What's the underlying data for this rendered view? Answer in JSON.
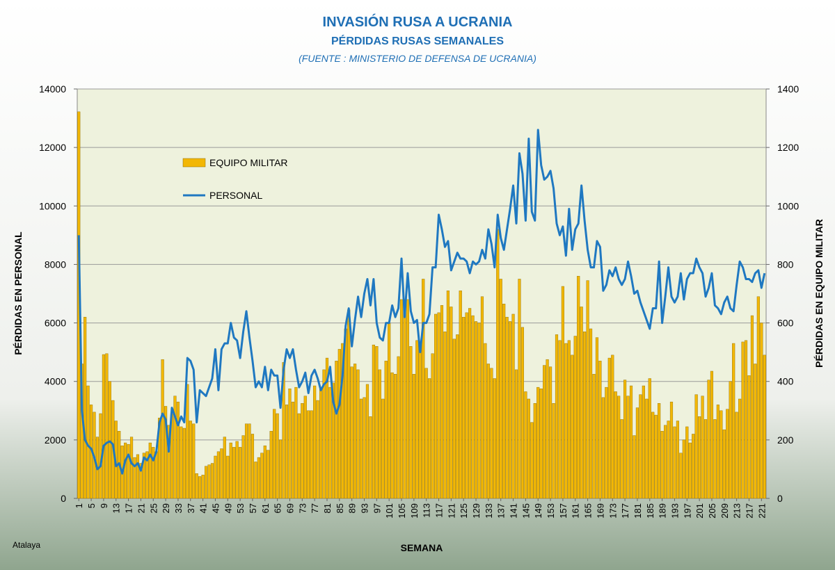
{
  "chart_data": {
    "type": "bar",
    "title": "INVASIÓN RUSA A UCRANIA",
    "subtitle": "PÉRDIDAS RUSAS SEMANALES",
    "source": "(FUENTE : MINISTERIO DE DEFENSA DE UCRANIA)",
    "credit": "Atalaya",
    "xlabel": "SEMANA",
    "ylabel": "PÉRDIDAS EN PERSONAL",
    "y2label": "PÉRDIDAS EN EQUIPO MILITAR",
    "ylim": [
      0,
      14000
    ],
    "yticks": [
      0,
      2000,
      4000,
      6000,
      8000,
      10000,
      12000,
      14000
    ],
    "y2lim": [
      0,
      1400
    ],
    "y2ticks": [
      0,
      200,
      400,
      600,
      800,
      1000,
      1200,
      1400
    ],
    "grid": true,
    "categories": [
      1,
      null,
      null,
      null,
      5,
      null,
      null,
      null,
      9,
      null,
      null,
      null,
      13,
      null,
      null,
      null,
      17,
      null,
      null,
      null,
      21,
      null,
      null,
      null,
      25,
      null,
      null,
      null,
      29,
      null,
      null,
      null,
      33,
      null,
      null,
      null,
      37,
      null,
      null,
      null,
      41,
      null,
      null,
      null,
      45,
      null,
      null,
      null,
      49,
      null,
      null,
      null,
      53,
      null,
      null,
      null,
      57,
      null,
      null,
      null,
      61,
      null,
      null,
      null,
      65,
      null,
      null,
      null,
      69,
      null,
      null,
      null,
      73,
      null,
      null,
      null,
      77,
      null,
      null,
      null,
      81,
      null,
      null,
      null,
      85,
      null,
      null,
      null,
      89,
      null,
      null,
      null,
      93,
      null,
      null,
      null,
      97,
      null,
      null,
      null,
      101,
      null,
      null,
      null,
      105,
      null,
      null,
      null,
      109,
      null,
      null,
      null,
      113,
      null,
      null,
      null,
      117,
      null,
      null,
      null,
      121,
      null,
      null,
      null,
      125,
      null,
      null,
      null,
      129,
      null,
      null,
      null,
      133,
      null,
      null,
      null,
      137,
      null,
      null,
      null,
      141,
      null,
      null,
      null,
      145,
      null,
      null,
      null,
      149,
      null,
      null,
      null,
      153,
      null,
      null,
      null,
      157,
      null,
      null,
      null,
      161,
      null,
      null,
      null,
      165,
      null,
      null,
      null,
      169,
      null,
      null,
      null,
      173,
      null,
      null,
      null,
      177,
      null,
      null,
      null,
      181,
      null,
      null,
      null,
      185,
      null,
      null,
      null,
      189,
      null,
      null,
      null,
      193,
      null,
      null,
      null,
      197,
      null,
      null,
      null,
      201,
      null,
      null,
      null,
      205,
      null,
      null,
      null,
      209,
      null,
      null,
      null,
      213,
      null,
      null,
      null,
      217,
      null,
      null,
      null,
      221,
      null
    ],
    "series": [
      {
        "name": "EQUIPO MILITAR",
        "type": "bar",
        "axis": "y2",
        "color": "#f2b705",
        "values": [
          1322,
          460,
          620,
          385,
          320,
          295,
          210,
          290,
          492,
          495,
          400,
          335,
          265,
          230,
          180,
          190,
          185,
          210,
          140,
          150,
          120,
          155,
          160,
          190,
          175,
          160,
          275,
          475,
          315,
          250,
          290,
          350,
          330,
          245,
          240,
          390,
          265,
          255,
          85,
          75,
          80,
          110,
          115,
          120,
          145,
          160,
          170,
          210,
          145,
          190,
          175,
          195,
          175,
          215,
          255,
          255,
          220,
          125,
          140,
          155,
          180,
          165,
          230,
          305,
          290,
          200,
          465,
          320,
          375,
          330,
          380,
          290,
          325,
          350,
          300,
          300,
          385,
          335,
          380,
          440,
          480,
          380,
          395,
          470,
          510,
          530,
          580,
          645,
          450,
          460,
          440,
          340,
          345,
          390,
          280,
          525,
          520,
          440,
          340,
          470,
          600,
          430,
          425,
          485,
          680,
          680,
          680,
          520,
          425,
          540,
          535,
          750,
          445,
          410,
          495,
          630,
          635,
          660,
          570,
          710,
          655,
          545,
          560,
          710,
          620,
          635,
          650,
          625,
          605,
          600,
          690,
          530,
          460,
          445,
          410,
          920,
          750,
          665,
          620,
          605,
          630,
          440,
          750,
          585,
          365,
          340,
          260,
          325,
          380,
          375,
          455,
          475,
          450,
          325,
          560,
          540,
          725,
          530,
          540,
          490,
          555,
          760,
          655,
          570,
          745,
          580,
          425,
          550,
          470,
          345,
          380,
          480,
          490,
          365,
          350,
          270,
          405,
          350,
          385,
          215,
          310,
          355,
          385,
          340,
          410,
          295,
          285,
          325,
          230,
          250,
          265,
          330,
          245,
          265,
          155,
          200,
          245,
          190,
          220,
          355,
          280,
          350,
          270,
          405,
          435,
          270,
          320,
          300,
          235,
          305,
          400,
          530,
          295,
          340,
          535,
          540,
          420,
          625,
          460,
          690,
          600,
          490
        ]
      },
      {
        "name": "PERSONAL",
        "type": "line",
        "color": "#1f78c1",
        "values": [
          9000,
          3000,
          2000,
          1800,
          1700,
          1400,
          1000,
          1100,
          1800,
          1900,
          1950,
          1850,
          1100,
          1200,
          850,
          1300,
          1500,
          1200,
          1100,
          1200,
          950,
          1400,
          1300,
          1500,
          1300,
          1600,
          2600,
          2900,
          2700,
          1600,
          3100,
          2800,
          2500,
          2800,
          2600,
          4800,
          4700,
          4400,
          2600,
          3700,
          3600,
          3500,
          3800,
          4100,
          5100,
          3700,
          5100,
          5300,
          5300,
          6000,
          5500,
          5400,
          4800,
          5700,
          6400,
          5500,
          4700,
          3800,
          4000,
          3800,
          4500,
          3700,
          4400,
          4200,
          4200,
          3100,
          4400,
          5100,
          4800,
          5100,
          4400,
          3800,
          4000,
          4300,
          3600,
          4200,
          4400,
          4100,
          3700,
          3900,
          4000,
          4500,
          3300,
          2900,
          3200,
          4200,
          5900,
          6500,
          5200,
          6100,
          6900,
          6200,
          7000,
          7500,
          6600,
          7500,
          6000,
          5500,
          5400,
          6000,
          6000,
          6600,
          6200,
          6500,
          8200,
          6200,
          7700,
          6400,
          6000,
          6100,
          5000,
          6000,
          6000,
          6300,
          7900,
          7900,
          9700,
          9200,
          8600,
          8800,
          7800,
          8100,
          8400,
          8200,
          8200,
          8100,
          7700,
          8100,
          8000,
          8100,
          8500,
          8200,
          9200,
          8700,
          7900,
          9700,
          8900,
          8500,
          9200,
          9900,
          10700,
          9400,
          11800,
          11100,
          9500,
          12300,
          9800,
          9500,
          12600,
          11400,
          10900,
          11000,
          11200,
          10600,
          9400,
          9000,
          9300,
          8300,
          9900,
          8500,
          9200,
          9400,
          10700,
          9500,
          8500,
          7900,
          7900,
          8800,
          8600,
          7100,
          7300,
          7800,
          7600,
          7900,
          7500,
          7300,
          7500,
          8100,
          7600,
          7000,
          7100,
          6700,
          6400,
          6100,
          5800,
          6500,
          6500,
          8100,
          6000,
          6900,
          7900,
          6900,
          6700,
          6900,
          7700,
          6800,
          7500,
          7700,
          7700,
          8200,
          7900,
          7700,
          6900,
          7200,
          7700,
          6600,
          6500,
          6300,
          6700,
          6900,
          6500,
          6400,
          7300,
          8100,
          7900,
          7500,
          7500,
          7400,
          7700,
          7800,
          7200,
          7700
        ]
      }
    ]
  }
}
